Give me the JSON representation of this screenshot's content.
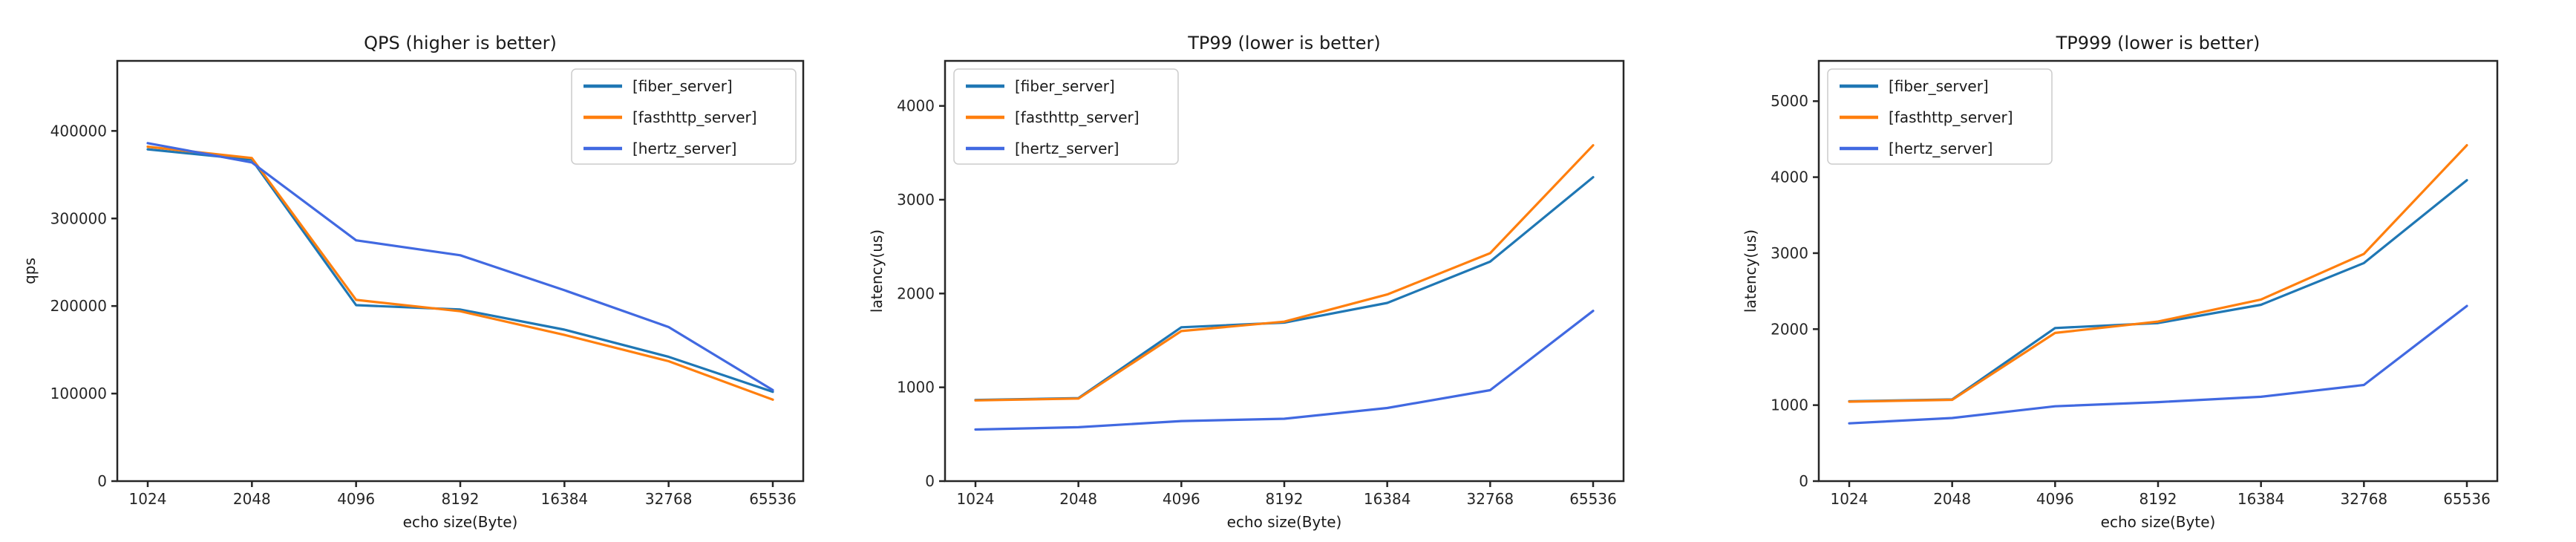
{
  "figure": {
    "background": "#ffffff",
    "text_color": "#1a1a1a",
    "axis_color": "#262626",
    "tick_label_color": "#262626",
    "legend_border_color": "#cccccc",
    "legend_background": "#ffffff"
  },
  "chart_data": [
    {
      "type": "line",
      "title": "QPS (higher is better)",
      "xlabel": "echo size(Byte)",
      "ylabel": "qps",
      "categories": [
        "1024",
        "2048",
        "4096",
        "8192",
        "16384",
        "32768",
        "65536"
      ],
      "yticks": [
        0,
        100000,
        200000,
        300000,
        400000
      ],
      "ylim": [
        0,
        480000
      ],
      "grid": false,
      "legend_position": "top-right",
      "series": [
        {
          "name": "[fiber_server]",
          "color": "#1f77b4",
          "values": [
            379000,
            367000,
            201000,
            196000,
            173000,
            142000,
            102000
          ]
        },
        {
          "name": "[fasthttp_server]",
          "color": "#ff7f0e",
          "values": [
            382000,
            369000,
            207000,
            194000,
            167000,
            137000,
            93000
          ]
        },
        {
          "name": "[hertz_server]",
          "color": "#4169e1",
          "values": [
            386000,
            364000,
            275000,
            258000,
            218000,
            176000,
            104000
          ]
        }
      ]
    },
    {
      "type": "line",
      "title": "TP99 (lower is better)",
      "xlabel": "echo size(Byte)",
      "ylabel": "latency(us)",
      "categories": [
        "1024",
        "2048",
        "4096",
        "8192",
        "16384",
        "32768",
        "65536"
      ],
      "yticks": [
        0,
        1000,
        2000,
        3000,
        4000
      ],
      "ylim": [
        0,
        4480
      ],
      "grid": false,
      "legend_position": "top-left",
      "series": [
        {
          "name": "[fiber_server]",
          "color": "#1f77b4",
          "values": [
            865,
            885,
            1640,
            1690,
            1900,
            2340,
            3240
          ]
        },
        {
          "name": "[fasthttp_server]",
          "color": "#ff7f0e",
          "values": [
            860,
            880,
            1600,
            1700,
            1990,
            2430,
            3580
          ]
        },
        {
          "name": "[hertz_server]",
          "color": "#4169e1",
          "values": [
            550,
            575,
            640,
            665,
            780,
            970,
            1815
          ]
        }
      ]
    },
    {
      "type": "line",
      "title": "TP999 (lower is better)",
      "xlabel": "echo size(Byte)",
      "ylabel": "latency(us)",
      "categories": [
        "1024",
        "2048",
        "4096",
        "8192",
        "16384",
        "32768",
        "65536"
      ],
      "yticks": [
        0,
        1000,
        2000,
        3000,
        4000,
        5000
      ],
      "ylim": [
        0,
        5530
      ],
      "grid": false,
      "legend_position": "top-left",
      "series": [
        {
          "name": "[fiber_server]",
          "color": "#1f77b4",
          "values": [
            1050,
            1075,
            2015,
            2080,
            2320,
            2870,
            3960
          ]
        },
        {
          "name": "[fasthttp_server]",
          "color": "#ff7f0e",
          "values": [
            1045,
            1070,
            1950,
            2100,
            2390,
            2990,
            4420
          ]
        },
        {
          "name": "[hertz_server]",
          "color": "#4169e1",
          "values": [
            760,
            830,
            985,
            1040,
            1110,
            1265,
            2305
          ]
        }
      ]
    }
  ]
}
